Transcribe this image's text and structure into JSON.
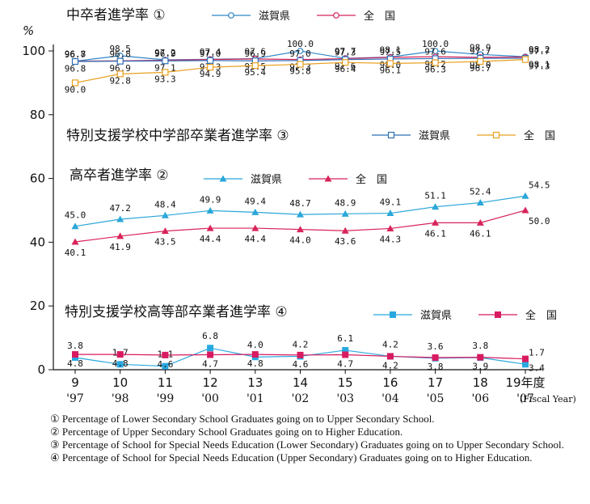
{
  "chart_data": {
    "type": "line",
    "y_unit": "%",
    "ylim": [
      0,
      100
    ],
    "yticks": [
      0,
      20,
      40,
      60,
      80,
      100
    ],
    "x_labels": [
      {
        "top": "9",
        "bottom": "'97"
      },
      {
        "top": "10",
        "bottom": "'98"
      },
      {
        "top": "11",
        "bottom": "'99"
      },
      {
        "top": "12",
        "bottom": "'00"
      },
      {
        "top": "13",
        "bottom": "'01"
      },
      {
        "top": "14",
        "bottom": "'02"
      },
      {
        "top": "15",
        "bottom": "'03"
      },
      {
        "top": "16",
        "bottom": "'04"
      },
      {
        "top": "17",
        "bottom": "'05"
      },
      {
        "top": "18",
        "bottom": "'06"
      },
      {
        "top": "19年度",
        "bottom": "'07"
      }
    ],
    "x_axis_note": "(Fiscal Year)",
    "groups": [
      {
        "title": "中卒者進学率 ①",
        "series": [
          {
            "name": "滋賀県",
            "marker": "circle-open",
            "color": "#2f86c8",
            "values": [
              96.8,
              98.5,
              97.2,
              97.4,
              97.6,
              100.0,
              97.7,
              98.1,
              100.0,
              98.9,
              98.2
            ]
          },
          {
            "name": "全　国",
            "marker": "circle-open",
            "color": "#d8245a",
            "values": [
              96.8,
              96.9,
              97.1,
              97.3,
              97.5,
              97.3,
              97.6,
              98.0,
              98.2,
              98.0,
              98.1
            ]
          }
        ]
      },
      {
        "title": "特別支援学校中学部卒業者進学率 ③",
        "series": [
          {
            "name": "滋賀県",
            "marker": "square-open",
            "color": "#2f6fb5",
            "values": [
              96.7,
              96.8,
              96.9,
              97.0,
              96.9,
              97.0,
              97.3,
              97.5,
              97.6,
              97.7,
              97.7
            ]
          },
          {
            "name": "全　国",
            "marker": "square-open",
            "color": "#e8a020",
            "values": [
              90.0,
              92.8,
              93.3,
              94.9,
              95.4,
              95.8,
              96.4,
              96.1,
              96.3,
              96.7,
              97.3
            ]
          }
        ]
      },
      {
        "title": "高卒者進学率 ②",
        "series": [
          {
            "name": "滋賀県",
            "marker": "triangle",
            "color": "#2aa7d9",
            "values": [
              45.0,
              47.2,
              48.4,
              49.9,
              49.4,
              48.7,
              48.9,
              49.1,
              51.1,
              52.4,
              54.5
            ]
          },
          {
            "name": "全　国",
            "marker": "triangle",
            "color": "#d8245a",
            "values": [
              40.1,
              41.9,
              43.5,
              44.4,
              44.4,
              44.0,
              43.6,
              44.3,
              46.1,
              46.1,
              50.0
            ]
          }
        ]
      },
      {
        "title": "特別支援学校高等部卒業者進学率 ④",
        "series": [
          {
            "name": "滋賀県",
            "marker": "square",
            "color": "#29a8df",
            "values": [
              3.8,
              1.7,
              1.1,
              6.8,
              4.0,
              4.2,
              6.1,
              4.2,
              3.6,
              3.8,
              1.7
            ]
          },
          {
            "name": "全　国",
            "marker": "square",
            "color": "#d81b60",
            "values": [
              4.8,
              4.8,
              4.6,
              4.7,
              4.8,
              4.6,
              4.7,
              4.2,
              3.8,
              3.9,
              3.4
            ]
          }
        ]
      }
    ]
  },
  "footnotes": [
    "① Percentage of Lower Secondary School Graduates going on to Upper Secondary School.",
    "② Percentage of Upper Secondary School Graduates going on to Higher Education.",
    "③ Percentage of School for Special Needs Education  (Lower Secondary) Graduates going on to Upper Secondary School.",
    "④ Percentage of School for Special Needs Education  (Upper Secondary) Graduates going on to Higher Education."
  ]
}
